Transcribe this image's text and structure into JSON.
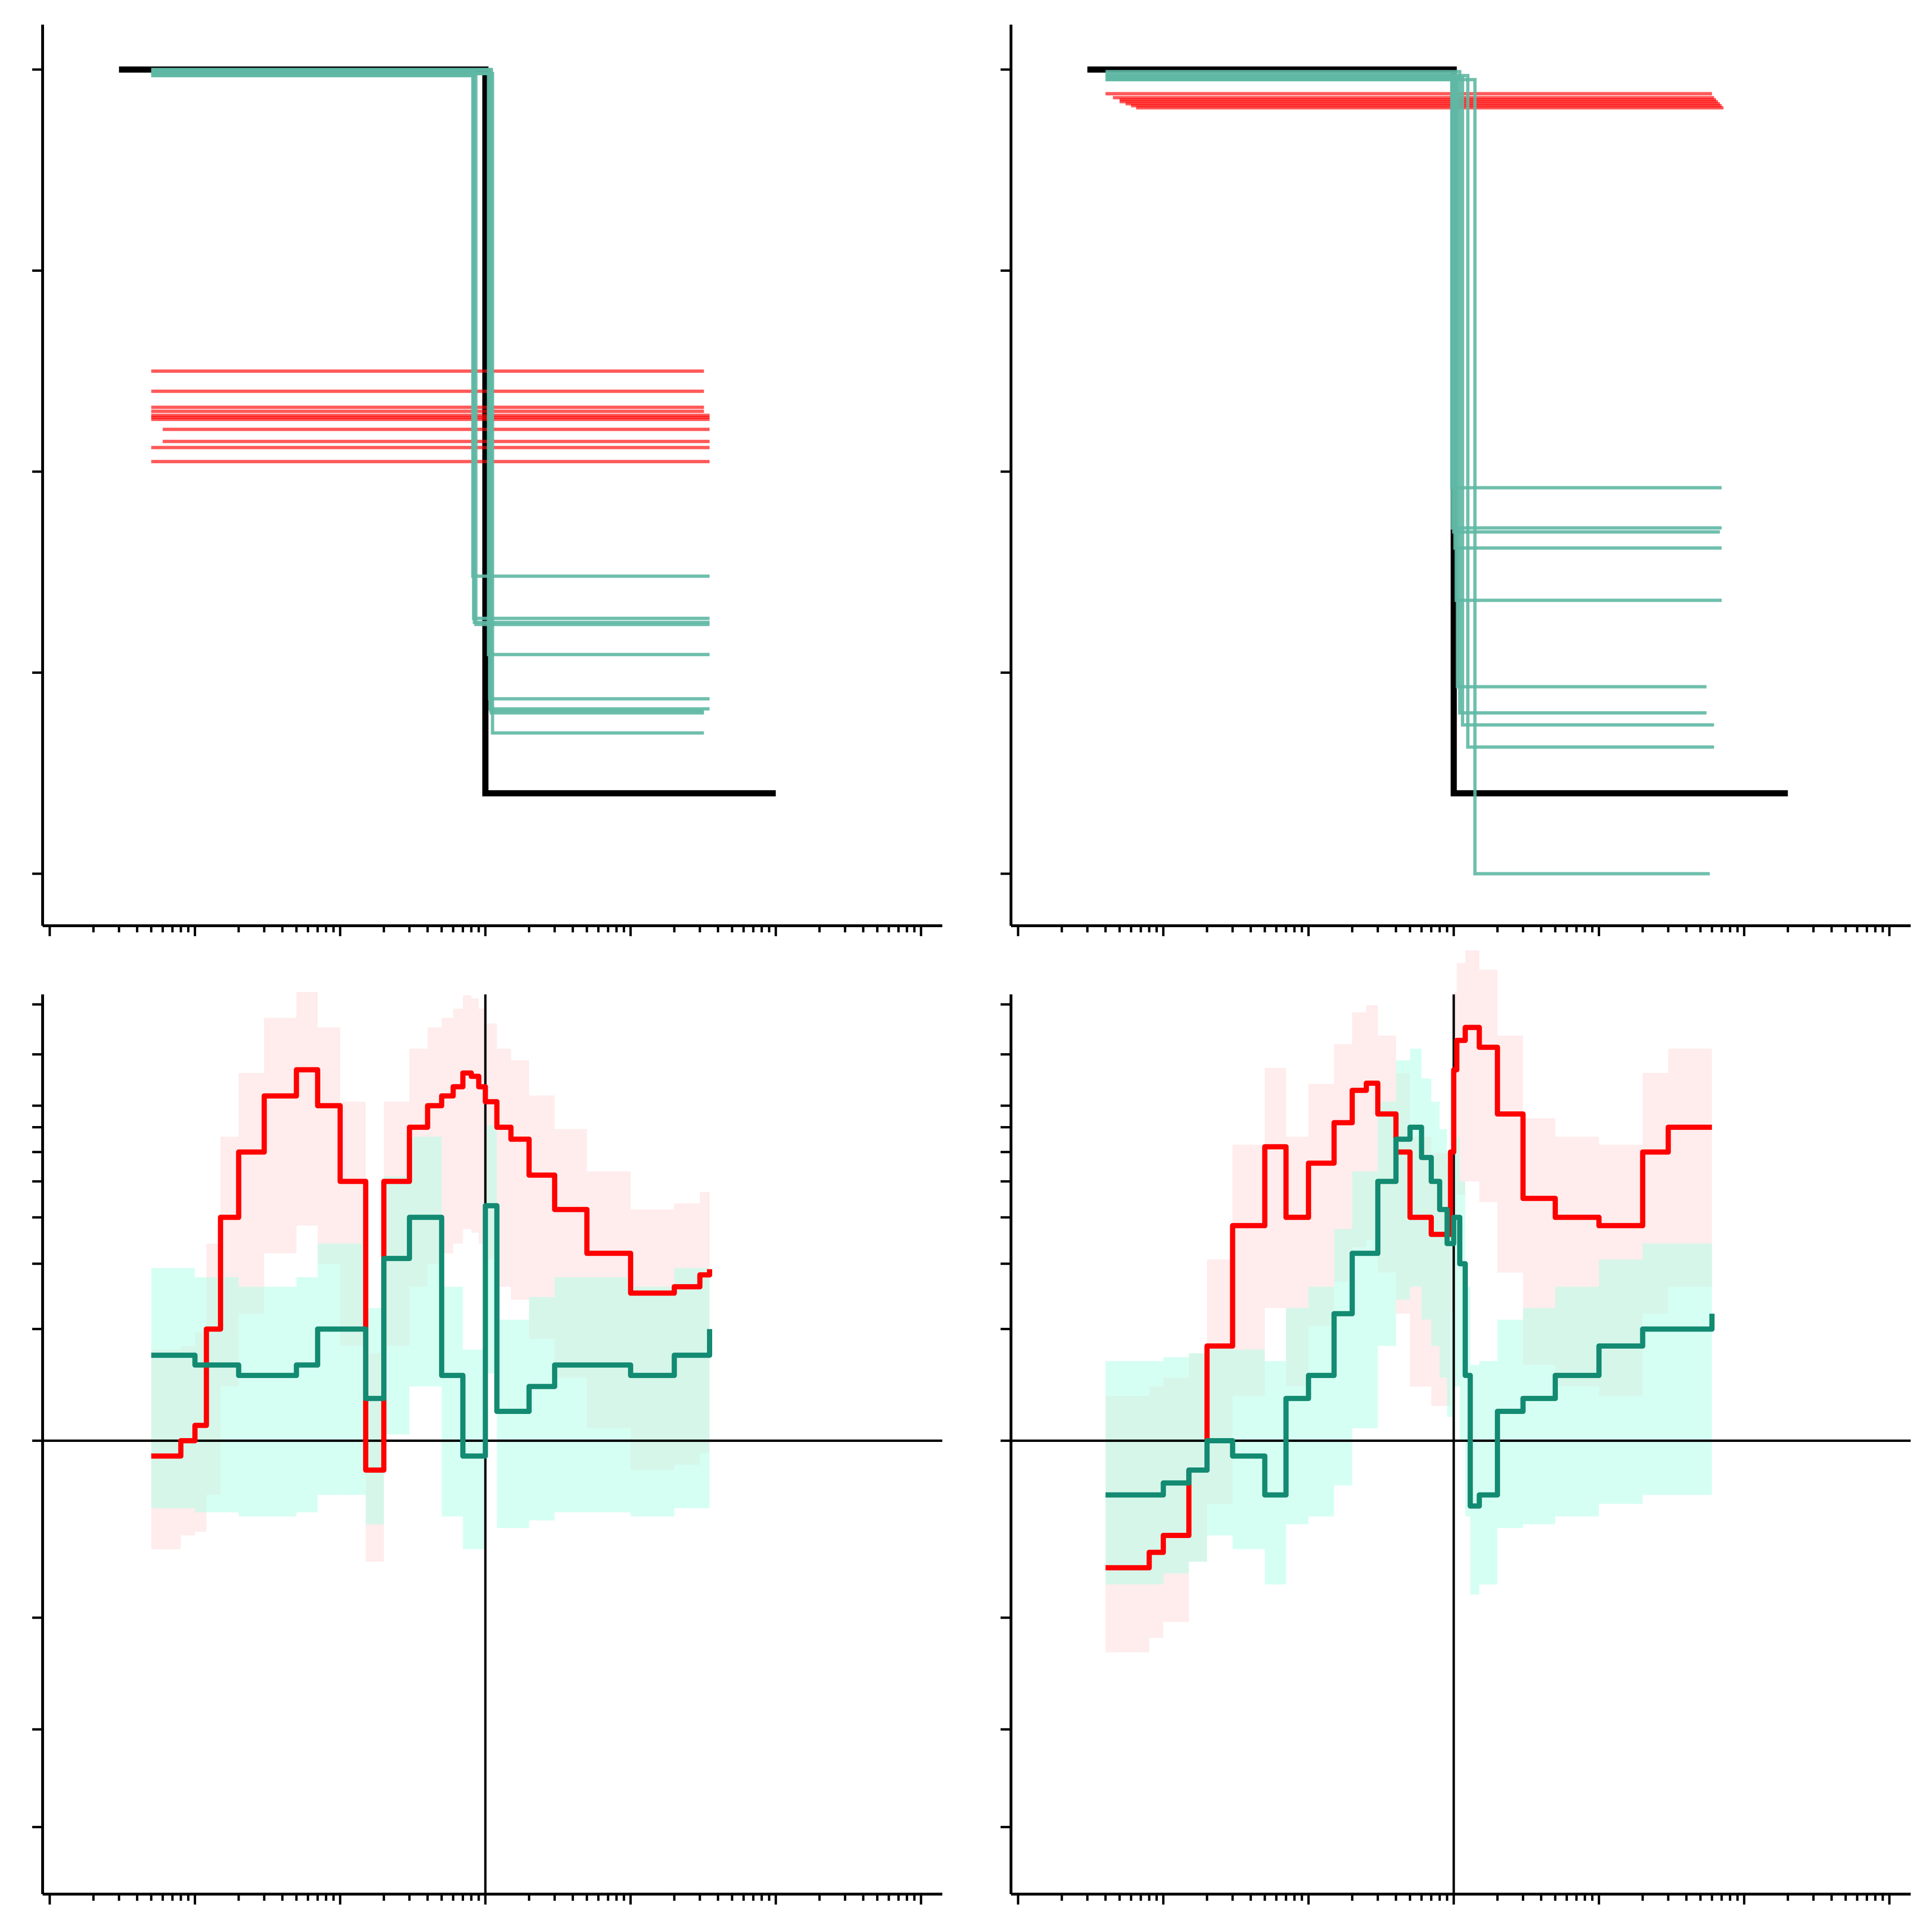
{
  "figure": {
    "background": "#ffffff"
  },
  "colors": {
    "target": "#000000",
    "red": "#ff0000",
    "red_band": "#ffdcdc",
    "teal": "#138a72",
    "teal_thin": "#5fb8a4",
    "teal_band": "#b4ffe9",
    "axis": "#000000"
  },
  "chart_data": [
    {
      "type": "line",
      "panel": "top-left",
      "x_scale": "log",
      "xlim": [
        0.001,
        1000
      ],
      "ylim": [
        -0.2,
        4.2
      ],
      "grid": false,
      "legend": "none",
      "yticks": [
        0,
        1,
        2,
        3,
        4
      ],
      "series": [
        {
          "role": "target",
          "color": "#000000",
          "x": [
            0.003,
            1.0,
            1.0,
            100
          ],
          "y": [
            4.0,
            4.0,
            0.4,
            0.4
          ]
        },
        {
          "role": "red-ensemble",
          "color": "#ff0000",
          "x_start": [
            0.005,
            0.005,
            0.005,
            0.005,
            0.005,
            0.005,
            0.005,
            0.006,
            0.006,
            0.005,
            0.005
          ],
          "x_end": [
            32,
            32,
            32,
            32,
            35,
            35,
            35,
            35,
            35,
            35,
            35
          ],
          "levels": [
            2.5,
            2.4,
            2.32,
            2.3,
            2.28,
            2.27,
            2.26,
            2.21,
            2.15,
            2.12,
            2.05
          ]
        },
        {
          "role": "teal-ensemble",
          "color": "#5fb8a4",
          "x_start": [
            0.005,
            0.005,
            0.005,
            0.005,
            0.005,
            0.005,
            0.005,
            0.005,
            0.005,
            0.005
          ],
          "x_drop": [
            0.82,
            0.83,
            0.84,
            0.86,
            1.05,
            1.07,
            1.08,
            1.09,
            1.1,
            1.12
          ],
          "x_end": [
            35,
            35,
            35,
            35,
            35,
            35,
            35,
            32,
            32,
            32
          ],
          "y_top": [
            3.97,
            3.98,
            3.99,
            3.97,
            3.98,
            4.0,
            3.99,
            3.98,
            4.0,
            3.98
          ],
          "levels": [
            1.48,
            1.27,
            1.25,
            1.24,
            1.09,
            0.87,
            0.82,
            0.81,
            0.8,
            0.7
          ]
        }
      ]
    },
    {
      "type": "line",
      "panel": "top-right",
      "x_scale": "log",
      "xlim": [
        0.001,
        1000
      ],
      "ylim": [
        -0.2,
        4.2
      ],
      "grid": false,
      "legend": "none",
      "yticks": [
        0,
        1,
        2,
        3,
        4
      ],
      "series": [
        {
          "role": "target",
          "color": "#000000",
          "x": [
            0.003,
            1.0,
            1.0,
            200
          ],
          "y": [
            4.0,
            4.0,
            0.4,
            0.4
          ]
        },
        {
          "role": "red-ensemble",
          "color": "#ff0000",
          "x_start": [
            0.004,
            0.0045,
            0.005,
            0.005,
            0.0055,
            0.006,
            0.0065
          ],
          "x_end": [
            60,
            62,
            64,
            66,
            68,
            70,
            72
          ],
          "levels": [
            3.88,
            3.86,
            3.85,
            3.84,
            3.83,
            3.82,
            3.81
          ]
        },
        {
          "role": "teal-ensemble",
          "color": "#5fb8a4",
          "x_start": [
            0.004,
            0.004,
            0.004,
            0.004,
            0.004,
            0.004,
            0.004,
            0.004,
            0.004,
            0.004
          ],
          "x_drop": [
            0.97,
            0.98,
            1.0,
            1.02,
            1.04,
            1.06,
            1.1,
            1.15,
            1.25,
            1.4
          ],
          "x_end": [
            70,
            70,
            68,
            70,
            70,
            55,
            55,
            62,
            62,
            58
          ],
          "y_top": [
            3.96,
            3.97,
            3.95,
            3.98,
            3.96,
            3.97,
            3.99,
            3.96,
            3.97,
            3.95
          ],
          "levels": [
            1.92,
            1.72,
            1.7,
            1.62,
            1.36,
            0.93,
            0.8,
            0.74,
            0.63,
            0.0
          ]
        }
      ]
    },
    {
      "type": "line",
      "panel": "bottom-left",
      "x_scale": "log",
      "xlim": [
        0.001,
        1000
      ],
      "y_scale": "symlog",
      "ylim": [
        -1.45,
        1.45
      ],
      "grid": false,
      "legend": "none",
      "reference_lines": {
        "x": 1.0,
        "y": 0.0
      },
      "series": [
        {
          "role": "red-mean",
          "color": "#ff0000",
          "x": [
            0.005,
            0.008,
            0.01,
            0.012,
            0.015,
            0.02,
            0.03,
            0.05,
            0.07,
            0.1,
            0.15,
            0.2,
            0.3,
            0.4,
            0.5,
            0.6,
            0.7,
            0.8,
            0.9,
            1.0,
            1.2,
            1.5,
            2,
            3,
            5,
            10,
            15,
            20,
            30,
            35
          ],
          "y": [
            -0.01,
            0.0,
            0.01,
            0.1,
            0.3,
            0.5,
            0.75,
            0.9,
            0.7,
            0.4,
            -0.02,
            0.4,
            0.6,
            0.7,
            0.75,
            0.8,
            0.88,
            0.86,
            0.8,
            0.72,
            0.6,
            0.55,
            0.42,
            0.32,
            0.22,
            0.15,
            0.15,
            0.16,
            0.18,
            0.19
          ]
        },
        {
          "role": "teal-mean",
          "color": "#138a72",
          "x": [
            0.005,
            0.01,
            0.02,
            0.03,
            0.05,
            0.07,
            0.1,
            0.15,
            0.2,
            0.3,
            0.5,
            0.7,
            1.0,
            1.1,
            1.2,
            1.5,
            2,
            3,
            5,
            10,
            20,
            35
          ],
          "y": [
            0.07,
            0.06,
            0.05,
            0.05,
            0.06,
            0.1,
            0.1,
            0.03,
            0.21,
            0.3,
            0.05,
            -0.01,
            0.33,
            0.33,
            0.02,
            0.02,
            0.04,
            0.06,
            0.06,
            0.05,
            0.07,
            0.1
          ]
        }
      ]
    },
    {
      "type": "line",
      "panel": "bottom-right",
      "x_scale": "log",
      "xlim": [
        0.001,
        1000
      ],
      "y_scale": "symlog",
      "ylim": [
        -1.45,
        1.45
      ],
      "grid": false,
      "legend": "none",
      "reference_lines": {
        "x": 1.0,
        "y": 0.0
      },
      "series": [
        {
          "role": "red-mean",
          "color": "#ff0000",
          "x": [
            0.004,
            0.006,
            0.008,
            0.01,
            0.015,
            0.02,
            0.03,
            0.05,
            0.07,
            0.1,
            0.15,
            0.2,
            0.25,
            0.3,
            0.4,
            0.5,
            0.7,
            0.9,
            0.95,
            1.0,
            1.05,
            1.2,
            1.5,
            2,
            3,
            5,
            10,
            20,
            30,
            50,
            60
          ],
          "y": [
            -0.12,
            -0.12,
            -0.1,
            -0.08,
            -0.02,
            0.08,
            0.28,
            0.52,
            0.3,
            0.46,
            0.62,
            0.78,
            0.82,
            0.66,
            0.5,
            0.3,
            0.26,
            0.26,
            0.5,
            0.9,
            1.1,
            1.2,
            1.05,
            0.66,
            0.35,
            0.3,
            0.28,
            0.5,
            0.6,
            0.6,
            0.6
          ]
        },
        {
          "role": "teal-mean",
          "color": "#138a72",
          "x": [
            0.004,
            0.01,
            0.015,
            0.02,
            0.03,
            0.05,
            0.07,
            0.1,
            0.15,
            0.2,
            0.3,
            0.4,
            0.5,
            0.6,
            0.7,
            0.8,
            0.9,
            1.0,
            1.1,
            1.2,
            1.3,
            1.5,
            2,
            3,
            5,
            10,
            20,
            60
          ],
          "y": [
            -0.04,
            -0.03,
            -0.02,
            0.0,
            -0.01,
            -0.04,
            0.03,
            0.05,
            0.12,
            0.22,
            0.4,
            0.55,
            0.6,
            0.48,
            0.4,
            0.32,
            0.24,
            0.3,
            0.2,
            0.05,
            -0.05,
            -0.04,
            0.02,
            0.03,
            0.05,
            0.08,
            0.1,
            0.12
          ]
        }
      ]
    }
  ]
}
